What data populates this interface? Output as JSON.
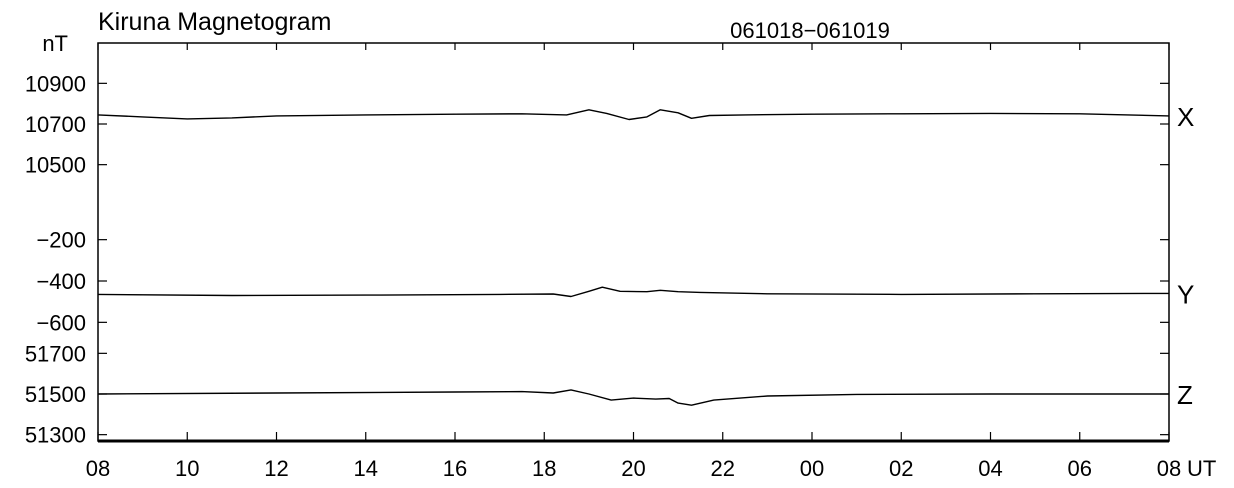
{
  "chart_data": {
    "type": "line",
    "title": "Kiruna Magnetogram",
    "date_range": "061018−061019",
    "ylabel": "nT",
    "xlabel": "UT",
    "x_ticks": [
      "08",
      "10",
      "12",
      "14",
      "16",
      "18",
      "20",
      "22",
      "00",
      "02",
      "04",
      "06",
      "08"
    ],
    "x_range_hours": [
      0,
      24
    ],
    "grid": false,
    "line_color": "#000000",
    "panels": [
      {
        "name": "X",
        "ylim": [
          10400,
          11000
        ],
        "y_ticks": [
          "10900",
          "10700",
          "10500"
        ],
        "y_tick_values": [
          10900,
          10700,
          10500
        ],
        "series": [
          {
            "t": 0,
            "v": 10745
          },
          {
            "t": 1,
            "v": 10735
          },
          {
            "t": 2,
            "v": 10725
          },
          {
            "t": 3,
            "v": 10730
          },
          {
            "t": 4,
            "v": 10740
          },
          {
            "t": 6,
            "v": 10745
          },
          {
            "t": 8,
            "v": 10748
          },
          {
            "t": 9.5,
            "v": 10750
          },
          {
            "t": 10.5,
            "v": 10745
          },
          {
            "t": 11,
            "v": 10770
          },
          {
            "t": 11.4,
            "v": 10752
          },
          {
            "t": 11.9,
            "v": 10722
          },
          {
            "t": 12.3,
            "v": 10735
          },
          {
            "t": 12.6,
            "v": 10770
          },
          {
            "t": 13.0,
            "v": 10755
          },
          {
            "t": 13.3,
            "v": 10728
          },
          {
            "t": 13.7,
            "v": 10742
          },
          {
            "t": 14.5,
            "v": 10745
          },
          {
            "t": 16,
            "v": 10748
          },
          {
            "t": 18,
            "v": 10750
          },
          {
            "t": 20,
            "v": 10752
          },
          {
            "t": 22,
            "v": 10750
          },
          {
            "t": 24,
            "v": 10740
          }
        ]
      },
      {
        "name": "Y",
        "ylim": [
          -700,
          -100
        ],
        "y_ticks": [
          "−200",
          "−400",
          "−600"
        ],
        "y_tick_values": [
          -200,
          -400,
          -600
        ],
        "series": [
          {
            "t": 0,
            "v": -465
          },
          {
            "t": 3,
            "v": -470
          },
          {
            "t": 6,
            "v": -468
          },
          {
            "t": 9,
            "v": -465
          },
          {
            "t": 10.2,
            "v": -463
          },
          {
            "t": 10.6,
            "v": -475
          },
          {
            "t": 11,
            "v": -450
          },
          {
            "t": 11.3,
            "v": -430
          },
          {
            "t": 11.7,
            "v": -450
          },
          {
            "t": 12.3,
            "v": -452
          },
          {
            "t": 12.6,
            "v": -445
          },
          {
            "t": 13.0,
            "v": -452
          },
          {
            "t": 13.5,
            "v": -455
          },
          {
            "t": 15,
            "v": -462
          },
          {
            "t": 18,
            "v": -465
          },
          {
            "t": 21,
            "v": -462
          },
          {
            "t": 24,
            "v": -460
          }
        ]
      },
      {
        "name": "Z",
        "ylim": [
          51200,
          51800
        ],
        "y_ticks": [
          "51700",
          "51500",
          "51300"
        ],
        "y_tick_values": [
          51700,
          51500,
          51300
        ],
        "series": [
          {
            "t": 0,
            "v": 51500
          },
          {
            "t": 4,
            "v": 51505
          },
          {
            "t": 8,
            "v": 51510
          },
          {
            "t": 9.5,
            "v": 51512
          },
          {
            "t": 10.2,
            "v": 51505
          },
          {
            "t": 10.6,
            "v": 51520
          },
          {
            "t": 11,
            "v": 51500
          },
          {
            "t": 11.5,
            "v": 51470
          },
          {
            "t": 12,
            "v": 51480
          },
          {
            "t": 12.5,
            "v": 51475
          },
          {
            "t": 12.8,
            "v": 51478
          },
          {
            "t": 13.0,
            "v": 51455
          },
          {
            "t": 13.3,
            "v": 51445
          },
          {
            "t": 13.8,
            "v": 51470
          },
          {
            "t": 15,
            "v": 51490
          },
          {
            "t": 17,
            "v": 51498
          },
          {
            "t": 20,
            "v": 51500
          },
          {
            "t": 24,
            "v": 51500
          }
        ]
      }
    ]
  }
}
